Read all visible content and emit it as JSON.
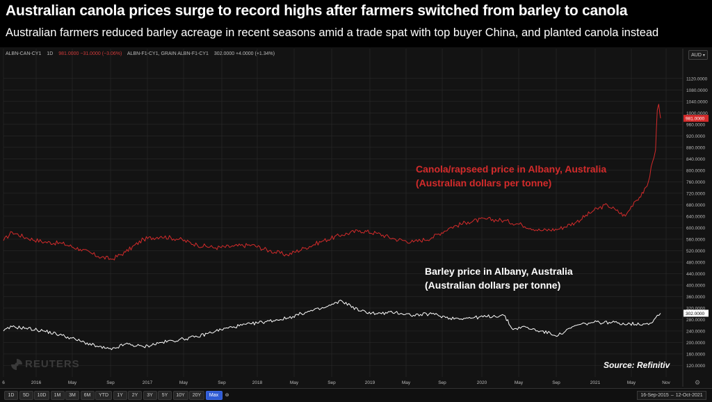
{
  "header": {
    "title": "Australian canola prices surge to record highs after farmers switched from barley to canola",
    "subtitle": "Australian farmers reduced barley acreage in recent seasons amid a trade spat with top buyer China, and planted canola instead"
  },
  "legend": {
    "canola_symbol": "ALBN-CAN-CY1",
    "interval": "1D",
    "canola_quote": "981.0000 −31.0000 (−3.06%)",
    "barley_symbol": "ALBN-F1-CY1, GRAIN ALBN-F1-CY1",
    "barley_quote": "302.0000 +4.0000 (+1.34%)"
  },
  "currency": "AUD",
  "annotations": {
    "canola_line1": "Canola/rapseed price in Albany, Australia",
    "canola_line2": "(Australian dollars per tonne)",
    "barley_line1": "Barley price in Albany, Australia",
    "barley_line2": "(Australian dollars per tonne)",
    "source": "Source: Refinitiv",
    "watermark": "REUTERS"
  },
  "toolbar": {
    "timeframes": [
      "1D",
      "5D",
      "10D",
      "1M",
      "3M",
      "6M",
      "YTD",
      "1Y",
      "2Y",
      "3Y",
      "5Y",
      "10Y",
      "20Y",
      "Max"
    ],
    "active": "Max",
    "range_start": "16-Sep-2015",
    "range_end": "12-Oct-2021"
  },
  "colors": {
    "canola": "#d42b2b",
    "barley": "#ffffff",
    "grid": "#2a2a2a",
    "accent": "#2f5bd4"
  },
  "chart_data": {
    "type": "line",
    "x_axis": {
      "start": "2015-09-16",
      "end": "2021-10-12",
      "tick_labels": [
        "6",
        "2016",
        "May",
        "Sep",
        "2017",
        "May",
        "Sep",
        "2018",
        "May",
        "Sep",
        "2019",
        "May",
        "Sep",
        "2020",
        "May",
        "Sep",
        "2021",
        "May",
        "Nov"
      ]
    },
    "y_axis": {
      "ylim": [
        80,
        1180
      ],
      "tick_labels": [
        "120.0000",
        "160.0000",
        "200.0000",
        "240.0000",
        "280.0000",
        "320.0000",
        "360.0000",
        "400.0000",
        "440.0000",
        "480.0000",
        "520.0000",
        "560.0000",
        "600.0000",
        "640.0000",
        "680.0000",
        "720.0000",
        "760.0000",
        "800.0000",
        "840.0000",
        "880.0000",
        "920.0000",
        "960.0000",
        "1000.0000",
        "1040.0000",
        "1080.0000",
        "1120.0000"
      ]
    },
    "last_value_labels": {
      "canola": "981.0000",
      "barley": "302.0000"
    },
    "series": [
      {
        "name": "Canola/rapseed price in Albany, Australia",
        "x": [
          "2015-09-16",
          "2015-10-15",
          "2015-12-01",
          "2016-02-01",
          "2016-04-01",
          "2016-06-01",
          "2016-08-01",
          "2016-09-15",
          "2016-11-01",
          "2017-01-01",
          "2017-03-01",
          "2017-05-01",
          "2017-07-01",
          "2017-09-01",
          "2017-11-01",
          "2018-01-01",
          "2018-03-01",
          "2018-05-01",
          "2018-07-01",
          "2018-09-01",
          "2018-11-01",
          "2019-01-01",
          "2019-03-01",
          "2019-05-01",
          "2019-07-01",
          "2019-09-01",
          "2019-11-01",
          "2020-01-01",
          "2020-03-01",
          "2020-05-01",
          "2020-07-01",
          "2020-09-01",
          "2020-11-01",
          "2021-01-01",
          "2021-03-01",
          "2021-04-15",
          "2021-05-15",
          "2021-06-15",
          "2021-07-15",
          "2021-08-15",
          "2021-09-01",
          "2021-09-15",
          "2021-09-25",
          "2021-10-01",
          "2021-10-06",
          "2021-10-12"
        ],
        "values": [
          555,
          585,
          565,
          550,
          545,
          525,
          500,
          490,
          515,
          560,
          570,
          560,
          540,
          530,
          535,
          540,
          520,
          505,
          530,
          555,
          575,
          590,
          580,
          560,
          550,
          565,
          600,
          620,
          630,
          625,
          610,
          590,
          595,
          620,
          660,
          680,
          660,
          640,
          690,
          720,
          760,
          830,
          870,
          1010,
          1030,
          981
        ]
      },
      {
        "name": "Barley price in Albany, Australia",
        "x": [
          "2015-09-16",
          "2015-10-15",
          "2015-12-01",
          "2016-02-01",
          "2016-04-01",
          "2016-06-01",
          "2016-08-01",
          "2016-09-15",
          "2016-11-01",
          "2017-01-01",
          "2017-03-01",
          "2017-05-01",
          "2017-07-01",
          "2017-09-01",
          "2017-11-01",
          "2018-01-01",
          "2018-03-01",
          "2018-05-01",
          "2018-07-01",
          "2018-09-01",
          "2018-11-01",
          "2019-01-01",
          "2019-03-01",
          "2019-05-01",
          "2019-07-01",
          "2019-09-01",
          "2019-11-01",
          "2020-01-01",
          "2020-03-01",
          "2020-05-01",
          "2020-06-01",
          "2020-07-01",
          "2020-09-01",
          "2020-11-01",
          "2021-01-01",
          "2021-03-01",
          "2021-05-01",
          "2021-07-01",
          "2021-08-15",
          "2021-09-15",
          "2021-10-01",
          "2021-10-12"
        ],
        "values": [
          240,
          255,
          250,
          240,
          225,
          205,
          185,
          175,
          195,
          185,
          200,
          210,
          220,
          240,
          255,
          265,
          275,
          285,
          305,
          320,
          345,
          310,
          300,
          305,
          295,
          300,
          285,
          285,
          290,
          295,
          245,
          255,
          240,
          225,
          260,
          270,
          270,
          265,
          265,
          270,
          295,
          302
        ]
      }
    ]
  }
}
